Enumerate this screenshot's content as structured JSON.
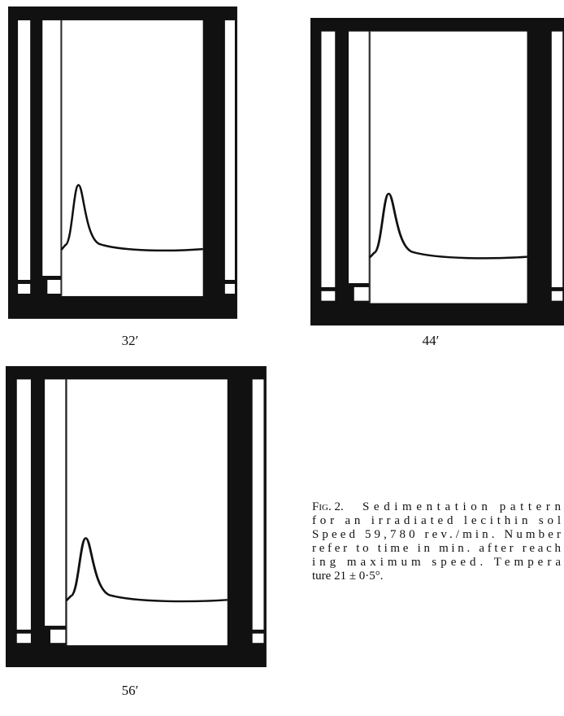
{
  "figure": {
    "panels": [
      {
        "label": "32′"
      },
      {
        "label": "44′"
      },
      {
        "label": "56′"
      }
    ],
    "caption": {
      "label": "Fig. 2.",
      "lines": [
        "Sedimentation pattern",
        "for an irradiated lecithin sol",
        "Speed 59,780 rev./min. Number",
        "refer to time in min. after reach",
        "ing maximum speed. Tempera",
        "ture 21 ± 0·5°."
      ]
    }
  }
}
